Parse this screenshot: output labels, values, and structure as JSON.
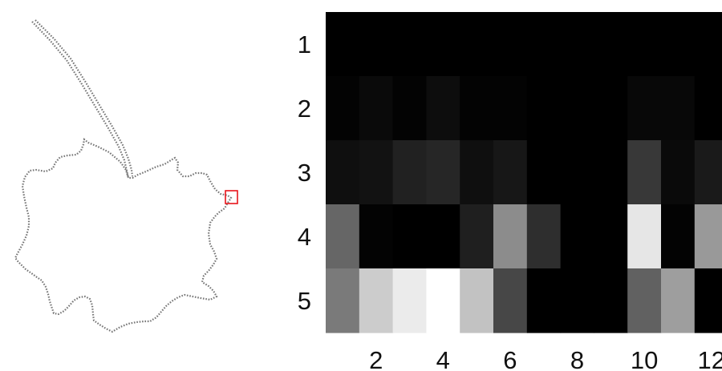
{
  "leaf_figure": {
    "outline_color": "#777777",
    "marker_color": "#e8141a"
  },
  "chart_data": {
    "type": "heatmap",
    "title": "",
    "xlabel": "",
    "ylabel": "",
    "colormap": "grayscale",
    "value_range": [
      0,
      1
    ],
    "rows": [
      1,
      2,
      3,
      4,
      5
    ],
    "columns": [
      1,
      2,
      3,
      4,
      5,
      6,
      7,
      8,
      9,
      10,
      11,
      12
    ],
    "y_tick_labels": [
      "1",
      "2",
      "3",
      "4",
      "5"
    ],
    "x_tick_labels": [
      "2",
      "4",
      "6",
      "8",
      "10",
      "12"
    ],
    "values": [
      [
        0.0,
        0.0,
        0.0,
        0.0,
        0.0,
        0.0,
        0.0,
        0.0,
        0.0,
        0.0,
        0.0,
        0.0
      ],
      [
        0.01,
        0.04,
        0.01,
        0.05,
        0.01,
        0.01,
        0.0,
        0.0,
        0.0,
        0.03,
        0.03,
        0.0
      ],
      [
        0.06,
        0.07,
        0.13,
        0.15,
        0.06,
        0.09,
        0.0,
        0.0,
        0.0,
        0.22,
        0.04,
        0.1
      ],
      [
        0.4,
        0.01,
        0.0,
        0.0,
        0.12,
        0.55,
        0.18,
        0.0,
        0.0,
        0.9,
        0.01,
        0.6
      ],
      [
        0.48,
        0.8,
        0.92,
        1.0,
        0.76,
        0.28,
        0.0,
        0.0,
        0.0,
        0.38,
        0.62,
        0.0
      ]
    ],
    "grid": false
  }
}
